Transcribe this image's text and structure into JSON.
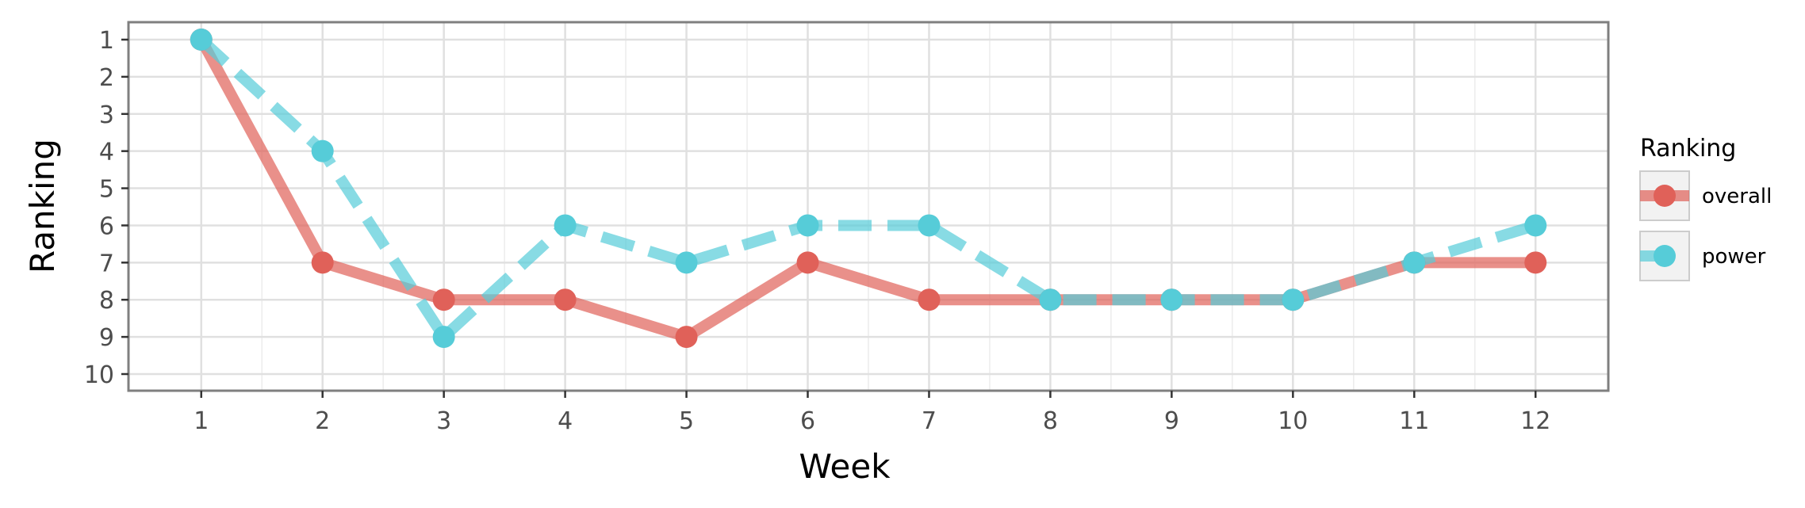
{
  "chart_data": {
    "type": "line",
    "xlabel": "Week",
    "ylabel": "Ranking",
    "x": [
      1,
      2,
      3,
      4,
      5,
      6,
      7,
      8,
      9,
      10,
      11,
      12
    ],
    "x_ticks": [
      "1",
      "2",
      "3",
      "4",
      "5",
      "6",
      "7",
      "8",
      "9",
      "10",
      "11",
      "12"
    ],
    "y_ticks": [
      "1",
      "2",
      "3",
      "4",
      "5",
      "6",
      "7",
      "8",
      "9",
      "10"
    ],
    "xlim": [
      0.4,
      12.6
    ],
    "ylim": [
      1,
      10
    ],
    "y_reversed": true,
    "grid": true,
    "legend": {
      "title": "Ranking",
      "position": "right"
    },
    "series": [
      {
        "name": "overall",
        "values": [
          1,
          7,
          8,
          8,
          9,
          7,
          8,
          8,
          8,
          8,
          7,
          7
        ],
        "color": "#e06159",
        "line_style": "solid"
      },
      {
        "name": "power",
        "values": [
          1,
          4,
          9,
          6,
          7,
          6,
          6,
          8,
          8,
          8,
          7,
          6
        ],
        "color": "#56ccd8",
        "line_style": "dashed"
      }
    ]
  }
}
